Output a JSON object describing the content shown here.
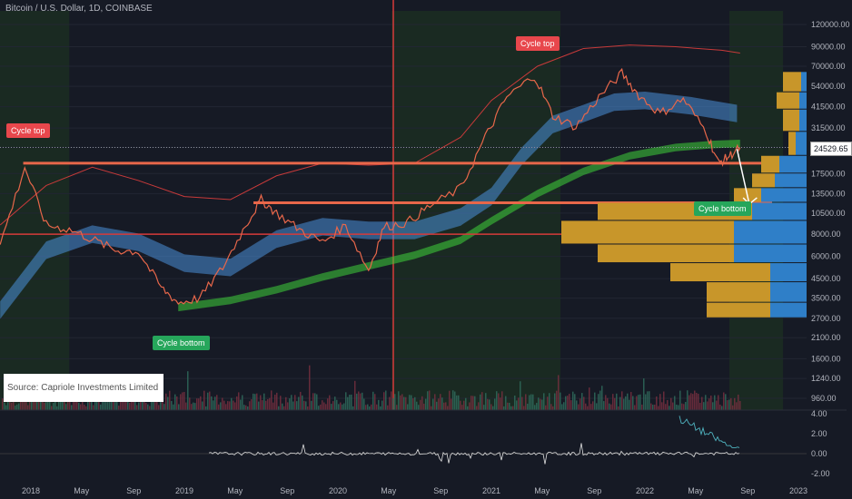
{
  "header": {
    "title": "Bitcoin / U.S. Dollar, 1D, COINBASE"
  },
  "source_note": "Source: Capriole Investments Limited",
  "labels": {
    "cycle_top_1": "Cycle top",
    "cycle_top_2": "Cycle top",
    "cycle_bottom_1": "Cycle bottom",
    "cycle_bottom_2": "Cycle bottom"
  },
  "last_price": "24529.65",
  "colors": {
    "background": "#161a25",
    "price": "#e8674a",
    "band_blue": "#4a90d9",
    "band_green": "#3fd13a",
    "volume_profile_gold": "#c8962a",
    "volume_profile_blue": "#2f7fc8",
    "resistance": "#e8674a",
    "support_red": "#d63a3a"
  },
  "chart_data": {
    "type": "line",
    "title": "Bitcoin / U.S. Dollar, 1D, COINBASE",
    "y_scale": "log",
    "x_ticks": [
      "2018",
      "May",
      "Sep",
      "2019",
      "May",
      "Sep",
      "2020",
      "May",
      "Sep",
      "2021",
      "May",
      "Sep",
      "2022",
      "May",
      "Sep",
      "2023"
    ],
    "y_ticks": [
      "120000.00",
      "90000.00",
      "70000.00",
      "54000.00",
      "41500.00",
      "31500.00",
      "24529.65",
      "17500.00",
      "13500.00",
      "10500.00",
      "8000.00",
      "6000.00",
      "4500.00",
      "3500.00",
      "2700.00",
      "2100.00",
      "1600.00",
      "1240.00",
      "960.00"
    ],
    "oscillator_ticks": [
      "4.00",
      "2.00",
      "0.00",
      "-2.00"
    ],
    "series": [
      {
        "values": [
          [
            2017.8,
            7000
          ],
          [
            2017.96,
            19000
          ],
          [
            2018.1,
            9000
          ],
          [
            2018.25,
            8500
          ],
          [
            2018.4,
            7500
          ],
          [
            2018.55,
            6500
          ],
          [
            2018.7,
            6400
          ],
          [
            2018.85,
            4000
          ],
          [
            2018.96,
            3300
          ],
          [
            2019.1,
            3500
          ],
          [
            2019.25,
            5200
          ],
          [
            2019.4,
            9000
          ],
          [
            2019.5,
            12500
          ],
          [
            2019.6,
            10500
          ],
          [
            2019.75,
            8500
          ],
          [
            2019.9,
            7200
          ],
          [
            2020.05,
            9000
          ],
          [
            2020.2,
            5000
          ],
          [
            2020.3,
            8800
          ],
          [
            2020.45,
            9300
          ],
          [
            2020.6,
            11500
          ],
          [
            2020.8,
            14500
          ],
          [
            2020.96,
            28000
          ],
          [
            2021.1,
            47000
          ],
          [
            2021.28,
            62000
          ],
          [
            2021.4,
            37000
          ],
          [
            2021.55,
            32000
          ],
          [
            2021.7,
            47000
          ],
          [
            2021.85,
            64000
          ],
          [
            2021.96,
            48000
          ],
          [
            2022.1,
            38000
          ],
          [
            2022.25,
            46000
          ],
          [
            2022.4,
            30000
          ],
          [
            2022.48,
            20000
          ],
          [
            2022.55,
            22000
          ],
          [
            2022.62,
            24500
          ]
        ]
      }
    ],
    "levels": [
      20000,
      12000,
      8000
    ]
  }
}
